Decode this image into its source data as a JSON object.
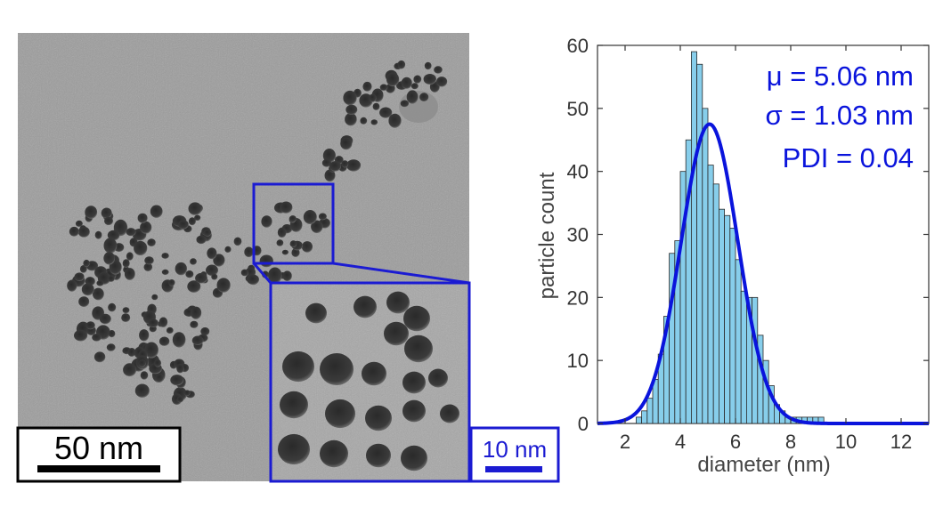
{
  "tem": {
    "scalebar_main": "50 nm",
    "scalebar_inset": "10 nm",
    "box_color": "#1b1bd2"
  },
  "chart_data": {
    "type": "bar",
    "xlabel": "diameter (nm)",
    "ylabel": "particle count",
    "xlim": [
      1,
      13
    ],
    "ylim": [
      0,
      60
    ],
    "xticks": [
      2,
      4,
      6,
      8,
      10,
      12
    ],
    "yticks": [
      0,
      10,
      20,
      30,
      40,
      50,
      60
    ],
    "bin_width": 0.2,
    "bin_starts": [
      2.4,
      2.6,
      2.8,
      3.0,
      3.2,
      3.4,
      3.6,
      3.8,
      4.0,
      4.2,
      4.4,
      4.6,
      4.8,
      5.0,
      5.2,
      5.4,
      5.6,
      5.8,
      6.0,
      6.2,
      6.4,
      6.6,
      6.8,
      7.0,
      7.2,
      7.4,
      7.6,
      7.8,
      8.0,
      8.2,
      8.4,
      8.6,
      8.8,
      9.0
    ],
    "counts": [
      1,
      2,
      4,
      7,
      11,
      17,
      27,
      29,
      40,
      45,
      59,
      57,
      50,
      41,
      38,
      34,
      33,
      31,
      26,
      21,
      20,
      20,
      14,
      10,
      6,
      3,
      2,
      1,
      1,
      1,
      1,
      1,
      1,
      1
    ],
    "bar_color": "#87ceeb",
    "fit": {
      "type": "gaussian",
      "mean": 5.06,
      "sigma": 1.03,
      "peak": 47.5,
      "color": "#0a14dc"
    },
    "annotations": [
      "μ = 5.06 nm",
      "σ = 1.03 nm",
      "PDI = 0.04"
    ],
    "grid": false
  }
}
